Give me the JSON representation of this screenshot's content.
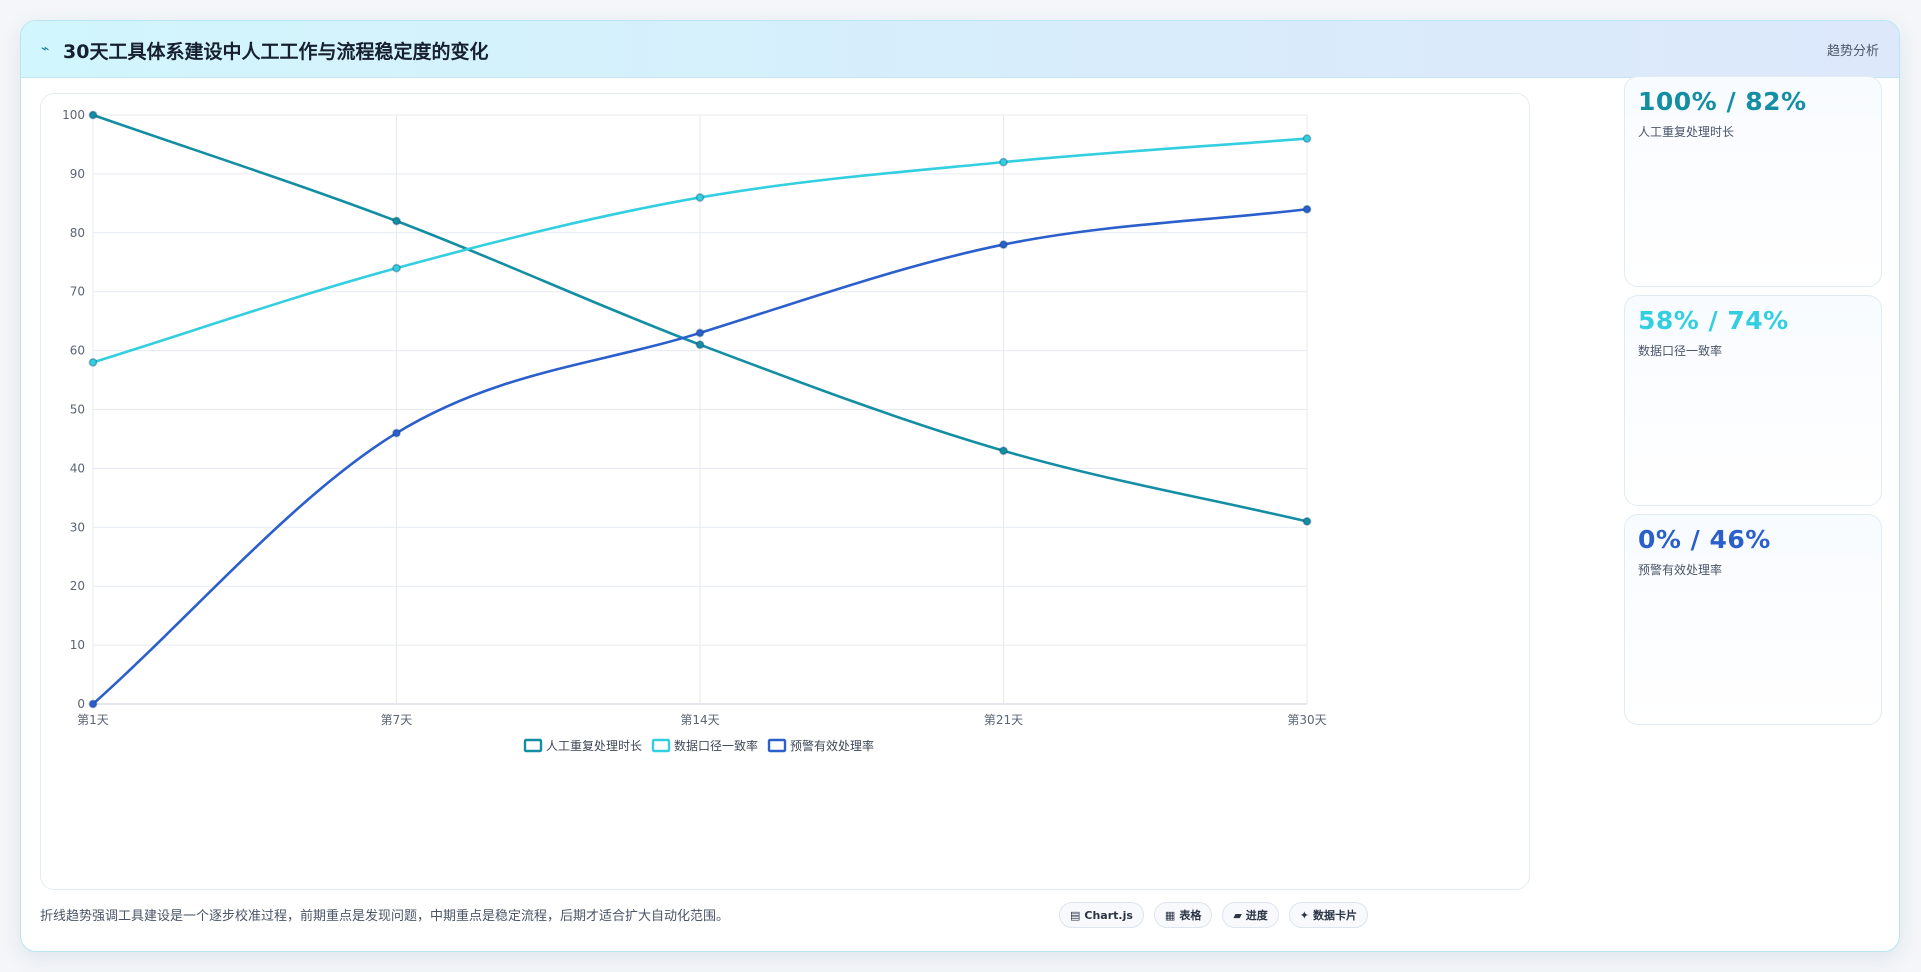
{
  "header": {
    "icon": "chart-line-icon",
    "icon_glyph": "⌁",
    "title": "30天工具体系建设中人工工作与流程稳定度的变化",
    "tag": "趋势分析"
  },
  "chart_data": {
    "type": "line",
    "categories": [
      "第1天",
      "第7天",
      "第14天",
      "第21天",
      "第30天"
    ],
    "ylim": [
      0,
      100
    ],
    "yticks": [
      0,
      10,
      20,
      30,
      40,
      50,
      60,
      70,
      80,
      90,
      100
    ],
    "grid": true,
    "legend": "bottom-center",
    "series": [
      {
        "name": "人工重复处理时长",
        "values": [
          100,
          82,
          61,
          43,
          31
        ],
        "color": "#138ea3"
      },
      {
        "name": "数据口径一致率",
        "values": [
          58,
          74,
          86,
          92,
          96
        ],
        "color": "#33cfe0"
      },
      {
        "name": "预警有效处理率",
        "values": [
          0,
          46,
          63,
          78,
          84
        ],
        "color": "#2a5fcc"
      }
    ]
  },
  "stats": [
    {
      "value": "100% / 82%",
      "label": "人工重复处理时长",
      "color": "#138ea3"
    },
    {
      "value": "58% / 74%",
      "label": "数据口径一致率",
      "color": "#33cfe0"
    },
    {
      "value": "0% / 46%",
      "label": "预警有效处理率",
      "color": "#2a5fcc"
    }
  ],
  "footer": {
    "note": "折线趋势强调工具建设是一个逐步校准过程，前期重点是发现问题，中期重点是稳定流程，后期才适合扩大自动化范围。",
    "buttons": [
      {
        "icon": "chart-icon",
        "glyph": "▤",
        "label": "Chart.js"
      },
      {
        "icon": "table-icon",
        "glyph": "▦",
        "label": "表格"
      },
      {
        "icon": "progress-icon",
        "glyph": "▰",
        "label": "进度"
      },
      {
        "icon": "card-icon",
        "glyph": "✦",
        "label": "数据卡片"
      }
    ]
  }
}
